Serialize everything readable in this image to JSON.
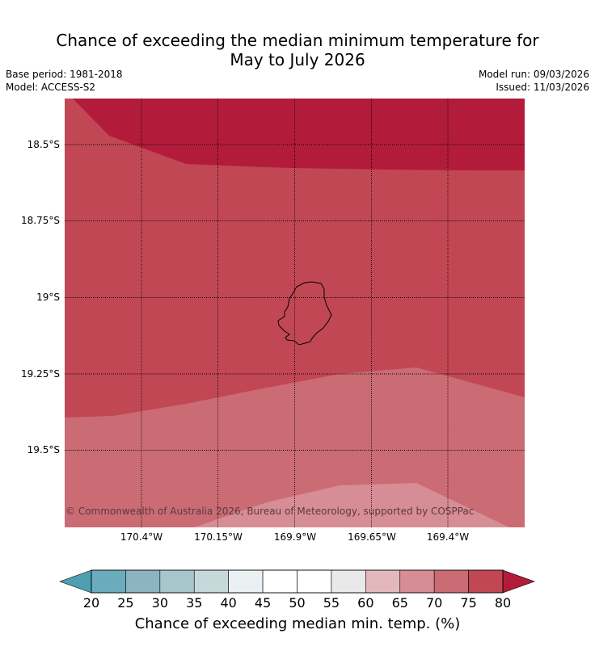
{
  "title_line1": "Chance of exceeding the median minimum temperature for",
  "title_line2": "May to July 2026",
  "base_period": "Base period: 1981-2018",
  "model": "Model: ACCESS-S2",
  "model_run": "Model run: 09/03/2026",
  "issued": "Issued: 11/03/2026",
  "map": {
    "lat_labels": [
      "18.5°S",
      "18.75°S",
      "19°S",
      "19.25°S",
      "19.5°S"
    ],
    "lon_labels": [
      "170.4°W",
      "170.15°W",
      "169.9°W",
      "169.65°W",
      "169.4°W"
    ],
    "copyright": "© Commonwealth of Australia 2026, Bureau of Meteorology, supported by COSPPac",
    "region_colors": {
      "band_80_plus": "#b21c3a",
      "band_75_80": "#c14755",
      "band_70_75": "#cb6b74",
      "band_65_70": "#d78d95"
    }
  },
  "colorbar": {
    "ticks": [
      "20",
      "25",
      "30",
      "35",
      "40",
      "45",
      "50",
      "55",
      "60",
      "65",
      "70",
      "75",
      "80"
    ],
    "colors": [
      "#4e9fb1",
      "#6aacbe",
      "#8bb4c0",
      "#a7c6cb",
      "#c7d8db",
      "#e9f1f2",
      "#ffffff",
      "#ffffff",
      "#e9e9e9",
      "#e3b8bc",
      "#d78d95",
      "#cb6b74",
      "#c14755",
      "#b21c3a"
    ],
    "label": "Chance of exceeding median min. temp. (%)"
  }
}
